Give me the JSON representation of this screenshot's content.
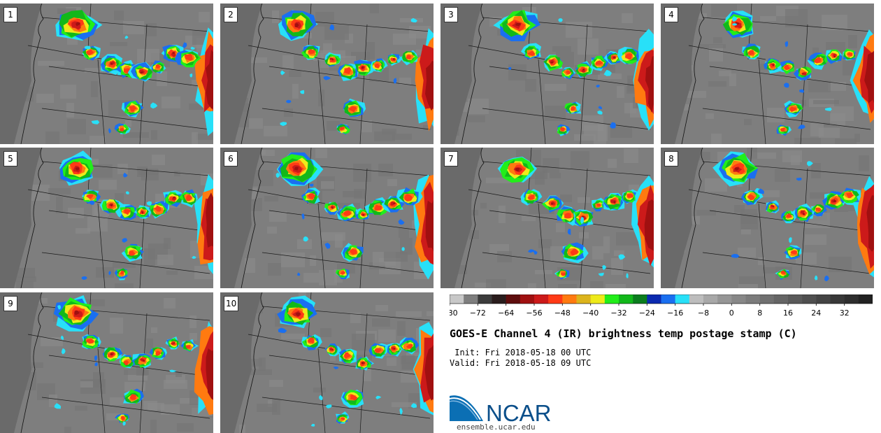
{
  "panels": [
    {
      "label": "1"
    },
    {
      "label": "2"
    },
    {
      "label": "3"
    },
    {
      "label": "4"
    },
    {
      "label": "5"
    },
    {
      "label": "6"
    },
    {
      "label": "7"
    },
    {
      "label": "8"
    },
    {
      "label": "9"
    },
    {
      "label": "10"
    }
  ],
  "colorbar": {
    "ticks": [
      "−80",
      "−72",
      "−64",
      "−56",
      "−48",
      "−40",
      "−32",
      "−24",
      "−16",
      "−8",
      "0",
      "8",
      "16",
      "24",
      "32"
    ],
    "colors": [
      "#c8c8c8",
      "#7e7e7e",
      "#3c3c3c",
      "#2a1d1d",
      "#5e0d0d",
      "#a01010",
      "#cc1a1a",
      "#ff3a16",
      "#ff7a10",
      "#dcb41c",
      "#eeea1a",
      "#22ee1a",
      "#12b81a",
      "#0b7d1e",
      "#0b2ab0",
      "#1a6ff0",
      "#28e0f8",
      "#bdbdbd",
      "#a8a8a8",
      "#969696",
      "#888888",
      "#7c7c7c",
      "#707070",
      "#656565",
      "#5a5a5a",
      "#4f4f4f",
      "#444444",
      "#383838",
      "#2e2e2e",
      "#222222"
    ]
  },
  "title": "GOES-E Channel 4 (IR) brightness temp postage stamp (C)",
  "init_line": " Init: Fri 2018-05-18 00 UTC",
  "valid_line": "Valid: Fri 2018-05-18 09 UTC",
  "logo_text": "NCAR",
  "logo_url": "ensemble.ucar.edu",
  "colors": {
    "accent": "#0b6fb4",
    "map_gray": "#808080"
  }
}
